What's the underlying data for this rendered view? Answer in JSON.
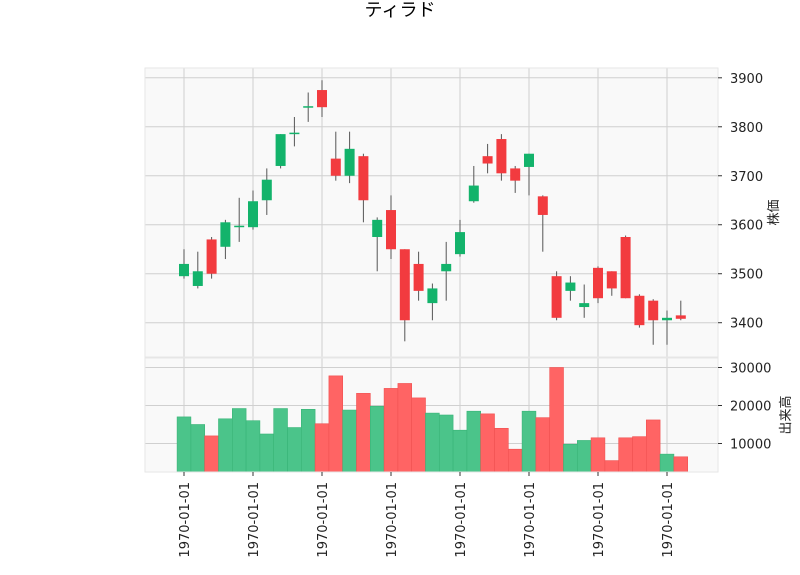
{
  "chart_data": {
    "type": "candlestick",
    "title": "ティラド",
    "colors": {
      "up": "#13b36b",
      "down": "#f23b3f",
      "wick": "#555555",
      "vol_up": "#4bc48a",
      "vol_down": "#ff6464",
      "panel_bg": "#f9f9f9",
      "grid": "#d0d0d0"
    },
    "price_panel": {
      "ylabel": "株価",
      "ylim": [
        3330,
        3920
      ],
      "yticks": [
        3400,
        3500,
        3600,
        3700,
        3800,
        3900
      ]
    },
    "volume_panel": {
      "ylabel": "出来高",
      "ylim": [
        2500,
        32500
      ],
      "yticks": [
        10000,
        20000,
        30000
      ]
    },
    "xtick_labels": [
      "1970-01-01",
      "1970-01-01",
      "1970-01-01",
      "1970-01-01",
      "1970-01-01",
      "1970-01-01",
      "1970-01-01",
      "1970-01-01"
    ],
    "xtick_indices": [
      0,
      5,
      10,
      15,
      20,
      25,
      30,
      35
    ],
    "candles": [
      {
        "open": 3495,
        "high": 3550,
        "low": 3490,
        "close": 3520,
        "volume": 17000
      },
      {
        "open": 3475,
        "high": 3545,
        "low": 3470,
        "close": 3505,
        "volume": 15000
      },
      {
        "open": 3570,
        "high": 3575,
        "low": 3490,
        "close": 3500,
        "volume": 12000
      },
      {
        "open": 3555,
        "high": 3610,
        "low": 3530,
        "close": 3605,
        "volume": 16500
      },
      {
        "open": 3595,
        "high": 3655,
        "low": 3565,
        "close": 3598,
        "volume": 19200
      },
      {
        "open": 3595,
        "high": 3670,
        "low": 3590,
        "close": 3648,
        "volume": 16000
      },
      {
        "open": 3650,
        "high": 3715,
        "low": 3620,
        "close": 3692,
        "volume": 12500
      },
      {
        "open": 3720,
        "high": 3785,
        "low": 3715,
        "close": 3785,
        "volume": 19200
      },
      {
        "open": 3785,
        "high": 3820,
        "low": 3760,
        "close": 3788,
        "volume": 14200
      },
      {
        "open": 3840,
        "high": 3870,
        "low": 3810,
        "close": 3842,
        "volume": 19000
      },
      {
        "open": 3875,
        "high": 3895,
        "low": 3820,
        "close": 3840,
        "volume": 15200
      },
      {
        "open": 3735,
        "high": 3790,
        "low": 3690,
        "close": 3700,
        "volume": 27800
      },
      {
        "open": 3700,
        "high": 3790,
        "low": 3685,
        "close": 3755,
        "volume": 18800
      },
      {
        "open": 3740,
        "high": 3745,
        "low": 3605,
        "close": 3650,
        "volume": 23200
      },
      {
        "open": 3575,
        "high": 3615,
        "low": 3505,
        "close": 3610,
        "volume": 19800
      },
      {
        "open": 3630,
        "high": 3660,
        "low": 3530,
        "close": 3550,
        "volume": 24500
      },
      {
        "open": 3550,
        "high": 3550,
        "low": 3362,
        "close": 3405,
        "volume": 25800
      },
      {
        "open": 3520,
        "high": 3545,
        "low": 3445,
        "close": 3465,
        "volume": 22000
      },
      {
        "open": 3440,
        "high": 3480,
        "low": 3405,
        "close": 3470,
        "volume": 18000
      },
      {
        "open": 3505,
        "high": 3565,
        "low": 3445,
        "close": 3520,
        "volume": 17500
      },
      {
        "open": 3540,
        "high": 3610,
        "low": 3535,
        "close": 3585,
        "volume": 13500
      },
      {
        "open": 3648,
        "high": 3720,
        "low": 3645,
        "close": 3680,
        "volume": 18500
      },
      {
        "open": 3740,
        "high": 3765,
        "low": 3705,
        "close": 3725,
        "volume": 17800
      },
      {
        "open": 3775,
        "high": 3785,
        "low": 3690,
        "close": 3705,
        "volume": 14000
      },
      {
        "open": 3715,
        "high": 3720,
        "low": 3665,
        "close": 3690,
        "volume": 8500
      },
      {
        "open": 3718,
        "high": 3745,
        "low": 3660,
        "close": 3745,
        "volume": 18500
      },
      {
        "open": 3658,
        "high": 3660,
        "low": 3545,
        "close": 3620,
        "volume": 16800
      },
      {
        "open": 3495,
        "high": 3505,
        "low": 3405,
        "close": 3410,
        "volume": 30000
      },
      {
        "open": 3465,
        "high": 3495,
        "low": 3445,
        "close": 3482,
        "volume": 9800
      },
      {
        "open": 3432,
        "high": 3478,
        "low": 3410,
        "close": 3440,
        "volume": 10800
      },
      {
        "open": 3512,
        "high": 3515,
        "low": 3440,
        "close": 3450,
        "volume": 11500
      },
      {
        "open": 3505,
        "high": 3505,
        "low": 3455,
        "close": 3470,
        "volume": 5500
      },
      {
        "open": 3575,
        "high": 3578,
        "low": 3450,
        "close": 3450,
        "volume": 11500
      },
      {
        "open": 3455,
        "high": 3458,
        "low": 3390,
        "close": 3395,
        "volume": 11800
      },
      {
        "open": 3445,
        "high": 3448,
        "low": 3355,
        "close": 3405,
        "volume": 16200
      },
      {
        "open": 3405,
        "high": 3425,
        "low": 3355,
        "close": 3410,
        "volume": 7200
      },
      {
        "open": 3415,
        "high": 3445,
        "low": 3405,
        "close": 3408,
        "volume": 6500
      }
    ]
  }
}
